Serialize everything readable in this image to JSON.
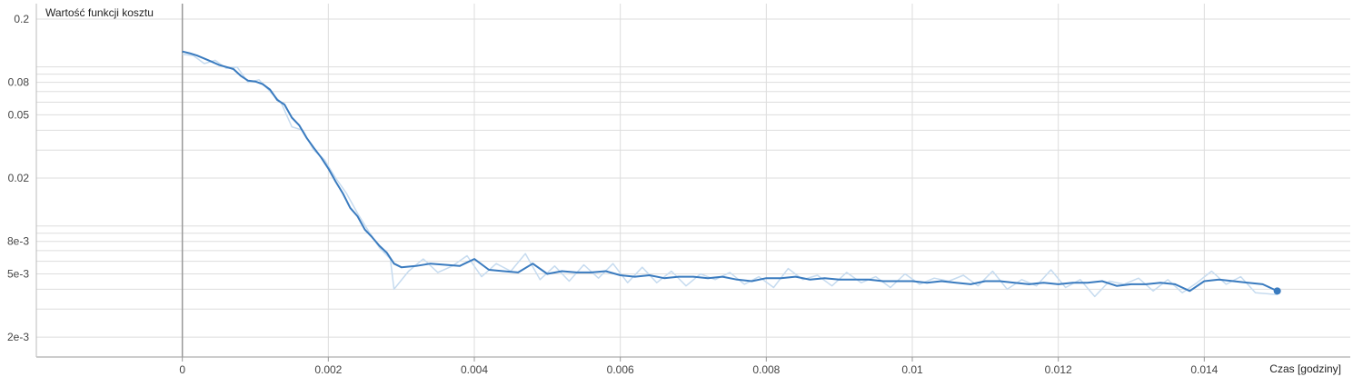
{
  "chart_data": {
    "type": "line",
    "title": "",
    "ylabel": "Wartość funkcji kosztu",
    "xlabel": "Czas [godziny]",
    "y_scale": "log",
    "xlim": [
      -0.002,
      0.016
    ],
    "ylim": [
      0.0015,
      0.25
    ],
    "grid": true,
    "legend": "none",
    "x_ticks": [
      {
        "value": 0,
        "label": "0"
      },
      {
        "value": 0.002,
        "label": "0.002"
      },
      {
        "value": 0.004,
        "label": "0.004"
      },
      {
        "value": 0.006,
        "label": "0.006"
      },
      {
        "value": 0.008,
        "label": "0.008"
      },
      {
        "value": 0.01,
        "label": "0.01"
      },
      {
        "value": 0.012,
        "label": "0.012"
      },
      {
        "value": 0.014,
        "label": "0.014"
      }
    ],
    "y_ticks_labeled": [
      {
        "value": 0.2,
        "label": "0.2"
      },
      {
        "value": 0.08,
        "label": "0.08"
      },
      {
        "value": 0.05,
        "label": "0.05"
      },
      {
        "value": 0.02,
        "label": "0.02"
      },
      {
        "value": 0.008,
        "label": "8e-3"
      },
      {
        "value": 0.005,
        "label": "5e-3"
      },
      {
        "value": 0.002,
        "label": "2e-3"
      }
    ],
    "y_gridlines": [
      0.2,
      0.1,
      0.09,
      0.08,
      0.07,
      0.06,
      0.05,
      0.04,
      0.03,
      0.02,
      0.01,
      0.009,
      0.008,
      0.007,
      0.006,
      0.005,
      0.004,
      0.003,
      0.002
    ],
    "colors": {
      "smoothed": "#3a7bbf",
      "raw": "#c6dbef",
      "grid": "#dddddd",
      "zero_axis": "#999999"
    },
    "series": [
      {
        "style": "smoothed",
        "x": [
          0,
          0.0001,
          0.0002,
          0.0003,
          0.0004,
          0.0005,
          0.0006,
          0.0007,
          0.0008,
          0.0009,
          0.001,
          0.0011,
          0.0012,
          0.0013,
          0.0014,
          0.0015,
          0.0016,
          0.0017,
          0.0018,
          0.0019,
          0.002,
          0.0021,
          0.0022,
          0.0023,
          0.0024,
          0.0025,
          0.0026,
          0.0027,
          0.0028,
          0.0029,
          0.003,
          0.0032,
          0.0034,
          0.0036,
          0.0038,
          0.004,
          0.0042,
          0.0044,
          0.0046,
          0.0048,
          0.005,
          0.0052,
          0.0054,
          0.0056,
          0.0058,
          0.006,
          0.0062,
          0.0064,
          0.0066,
          0.0068,
          0.007,
          0.0072,
          0.0074,
          0.0076,
          0.0078,
          0.008,
          0.0082,
          0.0084,
          0.0086,
          0.0088,
          0.009,
          0.0092,
          0.0094,
          0.0096,
          0.0098,
          0.01,
          0.0102,
          0.0104,
          0.0106,
          0.0108,
          0.011,
          0.0112,
          0.0114,
          0.0116,
          0.0118,
          0.012,
          0.0122,
          0.0124,
          0.0126,
          0.0128,
          0.013,
          0.0132,
          0.0134,
          0.0136,
          0.0138,
          0.014,
          0.0142,
          0.0144,
          0.0146,
          0.0148,
          0.015
        ],
        "y": [
          0.125,
          0.122,
          0.118,
          0.113,
          0.108,
          0.103,
          0.1,
          0.097,
          0.088,
          0.082,
          0.081,
          0.078,
          0.072,
          0.062,
          0.058,
          0.048,
          0.043,
          0.036,
          0.031,
          0.027,
          0.023,
          0.019,
          0.016,
          0.013,
          0.0115,
          0.0095,
          0.0085,
          0.0075,
          0.0068,
          0.0058,
          0.0055,
          0.0056,
          0.0058,
          0.0057,
          0.0056,
          0.0062,
          0.0053,
          0.0052,
          0.0051,
          0.0058,
          0.005,
          0.0052,
          0.0051,
          0.0051,
          0.0052,
          0.0049,
          0.0048,
          0.0049,
          0.0047,
          0.0048,
          0.0048,
          0.0047,
          0.0048,
          0.0046,
          0.0045,
          0.0047,
          0.0047,
          0.0048,
          0.0046,
          0.0047,
          0.0046,
          0.0046,
          0.0046,
          0.0045,
          0.0045,
          0.0045,
          0.0044,
          0.0045,
          0.0044,
          0.0043,
          0.0045,
          0.0045,
          0.0044,
          0.0043,
          0.0044,
          0.0043,
          0.0044,
          0.0044,
          0.0045,
          0.0042,
          0.0043,
          0.0043,
          0.0044,
          0.0043,
          0.0039,
          0.0045,
          0.0046,
          0.0045,
          0.0044,
          0.0043,
          0.0039
        ]
      },
      {
        "style": "raw",
        "x": [
          0,
          0.00015,
          0.0003,
          0.00045,
          0.0006,
          0.00075,
          0.0009,
          0.00105,
          0.0012,
          0.00135,
          0.0015,
          0.00165,
          0.0018,
          0.00195,
          0.0021,
          0.00225,
          0.0024,
          0.00255,
          0.0027,
          0.00285,
          0.0029,
          0.0031,
          0.0033,
          0.0035,
          0.0037,
          0.0039,
          0.0041,
          0.0043,
          0.0045,
          0.0047,
          0.0049,
          0.0051,
          0.0053,
          0.0055,
          0.0057,
          0.0059,
          0.0061,
          0.0063,
          0.0065,
          0.0067,
          0.0069,
          0.0071,
          0.0073,
          0.0075,
          0.0077,
          0.0079,
          0.0081,
          0.0083,
          0.0085,
          0.0087,
          0.0089,
          0.0091,
          0.0093,
          0.0095,
          0.0097,
          0.0099,
          0.0101,
          0.0103,
          0.0105,
          0.0107,
          0.0109,
          0.0111,
          0.0113,
          0.0115,
          0.0117,
          0.0119,
          0.0121,
          0.0123,
          0.0125,
          0.0127,
          0.0129,
          0.0131,
          0.0133,
          0.0135,
          0.0137,
          0.0139,
          0.0141,
          0.0143,
          0.0145,
          0.0147,
          0.015
        ],
        "y": [
          0.12,
          0.118,
          0.105,
          0.11,
          0.098,
          0.1,
          0.08,
          0.083,
          0.07,
          0.06,
          0.042,
          0.04,
          0.03,
          0.026,
          0.02,
          0.016,
          0.012,
          0.0093,
          0.0073,
          0.0062,
          0.004,
          0.0052,
          0.0062,
          0.0051,
          0.0056,
          0.0065,
          0.0048,
          0.0058,
          0.0052,
          0.0067,
          0.0046,
          0.0056,
          0.0045,
          0.0057,
          0.0047,
          0.0058,
          0.0044,
          0.0055,
          0.0044,
          0.0052,
          0.0042,
          0.005,
          0.0046,
          0.0051,
          0.0043,
          0.0048,
          0.0041,
          0.0054,
          0.0046,
          0.0049,
          0.0042,
          0.0051,
          0.0044,
          0.0048,
          0.0041,
          0.005,
          0.0043,
          0.0047,
          0.0045,
          0.0049,
          0.0042,
          0.0052,
          0.004,
          0.0046,
          0.0042,
          0.0053,
          0.0041,
          0.0046,
          0.0036,
          0.0045,
          0.0043,
          0.0047,
          0.0039,
          0.0046,
          0.0038,
          0.0044,
          0.0052,
          0.0043,
          0.0048,
          0.0038,
          0.0037
        ]
      }
    ]
  }
}
